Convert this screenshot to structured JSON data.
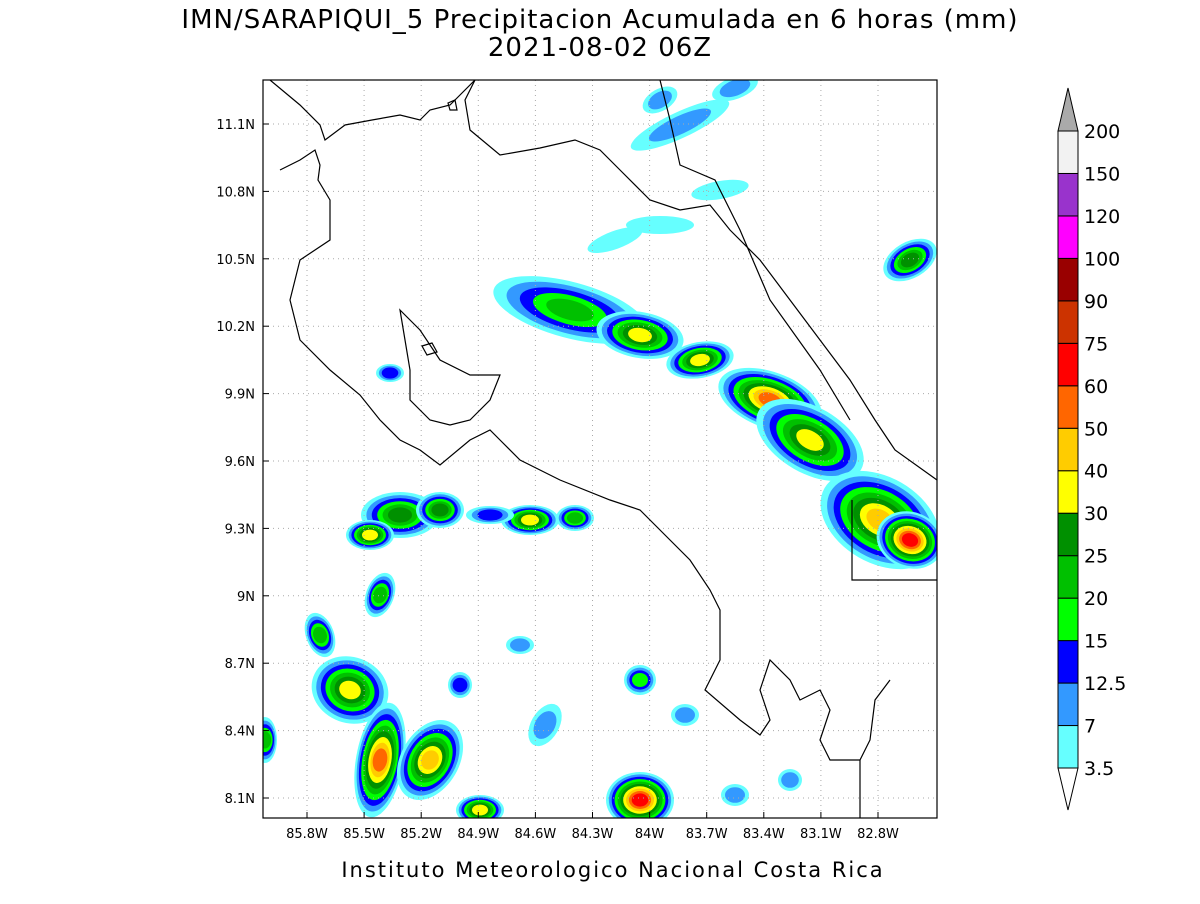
{
  "header": {
    "title": "IMN/SARAPIQUI_5 Precipitacion Acumulada en 6 horas (mm)",
    "subtitle": "2021-08-02 06Z"
  },
  "map": {
    "lat_labels": [
      "11.1N",
      "10.8N",
      "10.5N",
      "10.2N",
      "9.9N",
      "9.6N",
      "9.3N",
      "9N",
      "8.7N",
      "8.4N",
      "8.1N"
    ],
    "lon_labels": [
      "85.8W",
      "85.5W",
      "85.2W",
      "84.9W",
      "84.6W",
      "84.3W",
      "84W",
      "83.7W",
      "83.4W",
      "83.1W",
      "82.8W"
    ]
  },
  "colorbar": {
    "labels": [
      "3.5",
      "7",
      "12.5",
      "15",
      "20",
      "25",
      "30",
      "40",
      "50",
      "60",
      "75",
      "90",
      "100",
      "120",
      "150",
      "200"
    ],
    "colors": [
      "#66ffff",
      "#3399ff",
      "#0000ff",
      "#00ff00",
      "#00c000",
      "#009000",
      "#ffff00",
      "#ffcc00",
      "#ff6600",
      "#ff0000",
      "#cc3300",
      "#990000",
      "#ff00ff",
      "#9933cc",
      "#f2f2f2"
    ]
  },
  "footer": "Instituto Meteorologico Nacional Costa Rica"
}
